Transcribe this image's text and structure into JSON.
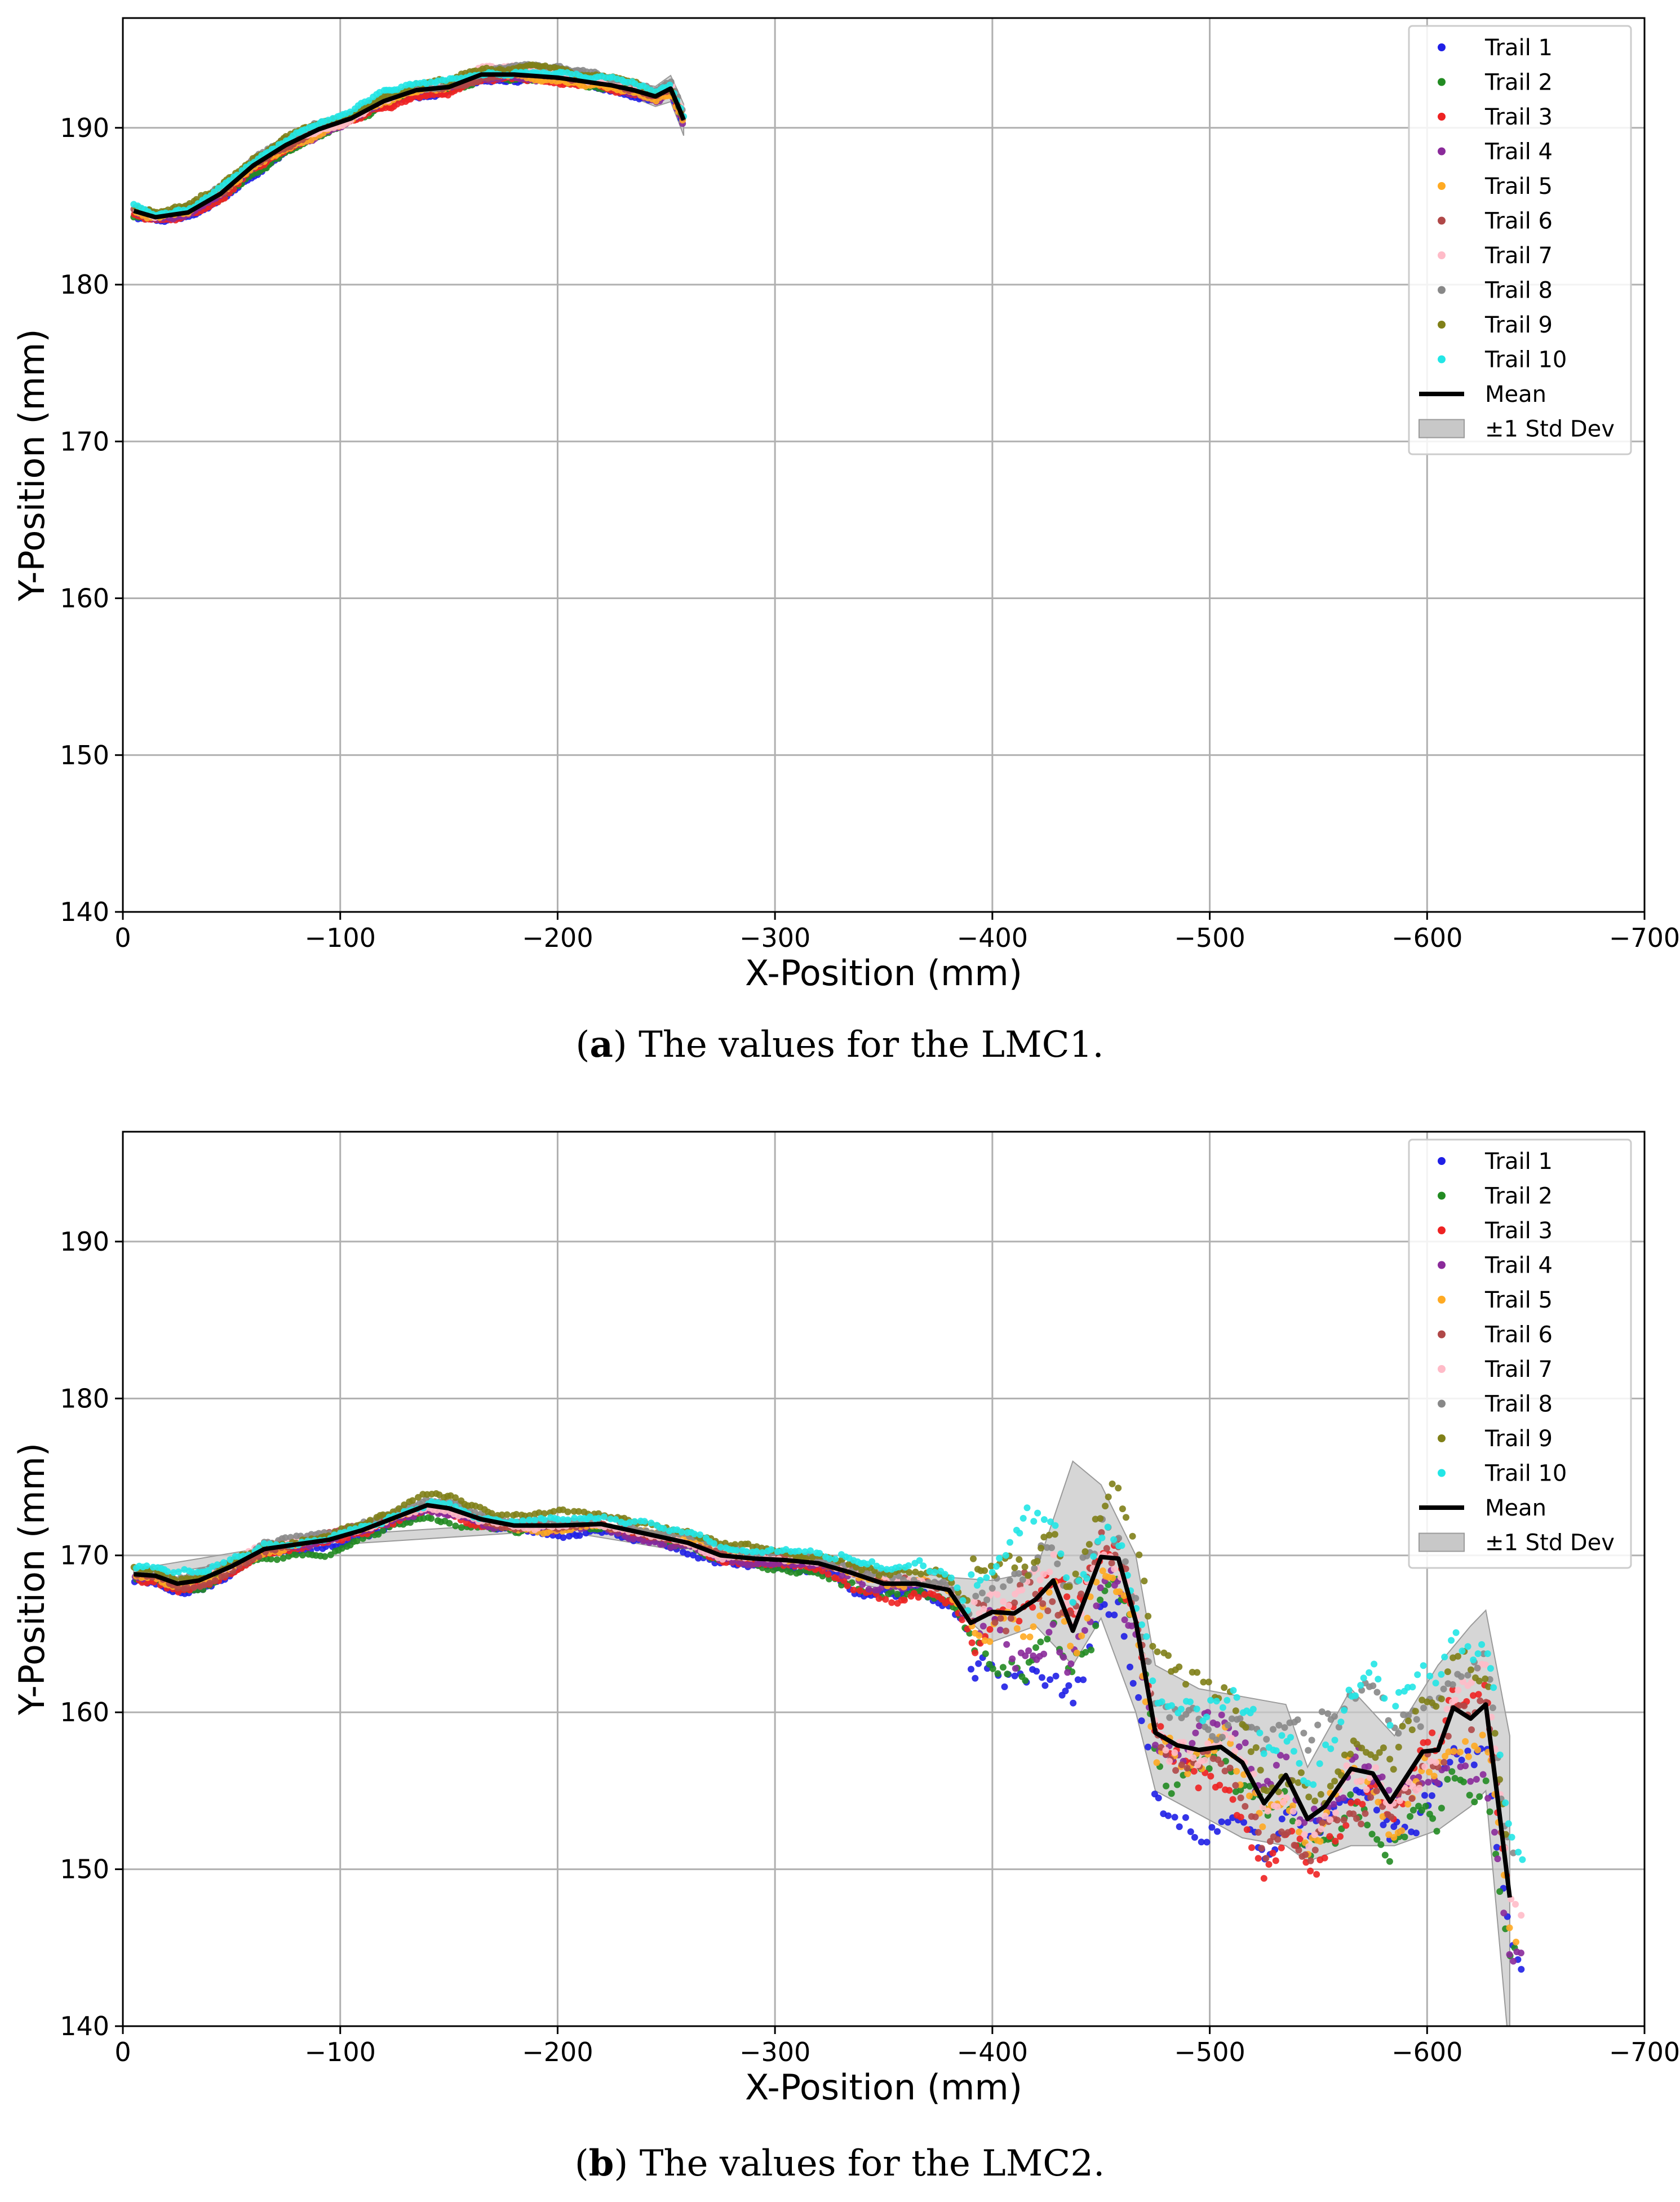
{
  "chart_data": [
    {
      "type": "scatter",
      "panel": "a",
      "caption_label": "a",
      "caption_text": ") The values for the LMC1.",
      "caption_open": "(",
      "xlabel": "X-Position (mm)",
      "ylabel": "Y-Position (mm)",
      "xlim": [
        0,
        -700
      ],
      "ylim": [
        140,
        197
      ],
      "xticks": [
        0,
        -100,
        -200,
        -300,
        -400,
        -500,
        -600,
        -700
      ],
      "xtick_labels": [
        "0",
        "−100",
        "−200",
        "−300",
        "−400",
        "−500",
        "−600",
        "−700"
      ],
      "yticks": [
        140,
        150,
        160,
        170,
        180,
        190
      ],
      "ytick_labels": [
        "140",
        "150",
        "160",
        "170",
        "180",
        "190"
      ],
      "grid": true,
      "legend_position": "top-right",
      "trail_colors": [
        "#1f1fe6",
        "#228b22",
        "#ee2222",
        "#8a2a9a",
        "#ffaa22",
        "#b04848",
        "#ffbbc8",
        "#888888",
        "#808018",
        "#22e6e6"
      ],
      "series": [
        {
          "name": "Trail 1",
          "color": "#1f1fe6"
        },
        {
          "name": "Trail 2",
          "color": "#228b22"
        },
        {
          "name": "Trail 3",
          "color": "#ee2222"
        },
        {
          "name": "Trail 4",
          "color": "#8a2a9a"
        },
        {
          "name": "Trail 5",
          "color": "#ffaa22"
        },
        {
          "name": "Trail 6",
          "color": "#b04848"
        },
        {
          "name": "Trail 7",
          "color": "#ffbbc8"
        },
        {
          "name": "Trail 8",
          "color": "#888888"
        },
        {
          "name": "Trail 9",
          "color": "#808018"
        },
        {
          "name": "Trail 10",
          "color": "#22e6e6"
        }
      ],
      "mean_label": "Mean",
      "std_label": "±1 Std Dev",
      "mean": [
        [
          -5,
          184.7
        ],
        [
          -15,
          184.3
        ],
        [
          -30,
          184.6
        ],
        [
          -45,
          185.8
        ],
        [
          -60,
          187.6
        ],
        [
          -75,
          188.9
        ],
        [
          -90,
          189.9
        ],
        [
          -105,
          190.6
        ],
        [
          -120,
          191.7
        ],
        [
          -135,
          192.4
        ],
        [
          -150,
          192.6
        ],
        [
          -165,
          193.4
        ],
        [
          -180,
          193.4
        ],
        [
          -200,
          193.2
        ],
        [
          -215,
          192.9
        ],
        [
          -225,
          192.7
        ],
        [
          -235,
          192.4
        ],
        [
          -245,
          192.0
        ],
        [
          -252,
          192.5
        ],
        [
          -256,
          191.2
        ],
        [
          -258,
          190.5
        ]
      ],
      "std_half_width": [
        [
          -5,
          0.3
        ],
        [
          -100,
          0.3
        ],
        [
          -200,
          0.3
        ],
        [
          -240,
          0.5
        ],
        [
          -258,
          1.0
        ]
      ]
    },
    {
      "type": "scatter",
      "panel": "b",
      "caption_label": "b",
      "caption_text": ") The values for the LMC2.",
      "caption_open": "(",
      "xlabel": "X-Position (mm)",
      "ylabel": "Y-Position (mm)",
      "xlim": [
        0,
        -700
      ],
      "ylim": [
        140,
        197
      ],
      "xticks": [
        0,
        -100,
        -200,
        -300,
        -400,
        -500,
        -600,
        -700
      ],
      "xtick_labels": [
        "0",
        "−100",
        "−200",
        "−300",
        "−400",
        "−500",
        "−600",
        "−700"
      ],
      "yticks": [
        140,
        150,
        160,
        170,
        180,
        190
      ],
      "ytick_labels": [
        "140",
        "150",
        "160",
        "170",
        "180",
        "190"
      ],
      "grid": true,
      "legend_position": "top-right",
      "series": [
        {
          "name": "Trail 1",
          "color": "#1f1fe6"
        },
        {
          "name": "Trail 2",
          "color": "#228b22"
        },
        {
          "name": "Trail 3",
          "color": "#ee2222"
        },
        {
          "name": "Trail 4",
          "color": "#8a2a9a"
        },
        {
          "name": "Trail 5",
          "color": "#ffaa22"
        },
        {
          "name": "Trail 6",
          "color": "#b04848"
        },
        {
          "name": "Trail 7",
          "color": "#ffbbc8"
        },
        {
          "name": "Trail 8",
          "color": "#888888"
        },
        {
          "name": "Trail 9",
          "color": "#808018"
        },
        {
          "name": "Trail 10",
          "color": "#22e6e6"
        }
      ],
      "mean_label": "Mean",
      "std_label": "±1 Std Dev",
      "mean": [
        [
          -5,
          168.8
        ],
        [
          -15,
          168.7
        ],
        [
          -25,
          168.2
        ],
        [
          -35,
          168.4
        ],
        [
          -50,
          169.3
        ],
        [
          -65,
          170.4
        ],
        [
          -80,
          170.7
        ],
        [
          -95,
          171.0
        ],
        [
          -110,
          171.6
        ],
        [
          -125,
          172.4
        ],
        [
          -140,
          173.2
        ],
        [
          -150,
          173.0
        ],
        [
          -165,
          172.3
        ],
        [
          -180,
          171.9
        ],
        [
          -200,
          171.9
        ],
        [
          -220,
          172.0
        ],
        [
          -240,
          171.4
        ],
        [
          -260,
          170.8
        ],
        [
          -275,
          170.0
        ],
        [
          -290,
          169.8
        ],
        [
          -305,
          169.7
        ],
        [
          -320,
          169.5
        ],
        [
          -335,
          168.9
        ],
        [
          -350,
          168.2
        ],
        [
          -365,
          168.2
        ],
        [
          -380,
          167.8
        ],
        [
          -390,
          165.7
        ],
        [
          -400,
          166.4
        ],
        [
          -410,
          166.3
        ],
        [
          -420,
          167.2
        ],
        [
          -428,
          168.4
        ],
        [
          -437,
          165.2
        ],
        [
          -450,
          169.9
        ],
        [
          -458,
          169.8
        ],
        [
          -466,
          165.8
        ],
        [
          -475,
          158.7
        ],
        [
          -485,
          157.9
        ],
        [
          -495,
          157.6
        ],
        [
          -505,
          157.8
        ],
        [
          -515,
          156.8
        ],
        [
          -525,
          154.2
        ],
        [
          -535,
          156.0
        ],
        [
          -545,
          153.2
        ],
        [
          -553,
          154.0
        ],
        [
          -565,
          156.4
        ],
        [
          -575,
          156.1
        ],
        [
          -583,
          154.3
        ],
        [
          -598,
          157.5
        ],
        [
          -605,
          157.6
        ],
        [
          -612,
          160.3
        ],
        [
          -620,
          159.6
        ],
        [
          -627,
          160.5
        ],
        [
          -632,
          155.0
        ],
        [
          -638,
          148.2
        ]
      ],
      "std_band": [
        [
          -5,
          168.5,
          169.1
        ],
        [
          -100,
          170.7,
          171.3
        ],
        [
          -200,
          171.6,
          172.2
        ],
        [
          -300,
          169.3,
          170.1
        ],
        [
          -380,
          167.0,
          168.6
        ],
        [
          -400,
          164.5,
          168.4
        ],
        [
          -420,
          165.5,
          169.0
        ],
        [
          -437,
          163.0,
          176.0
        ],
        [
          -450,
          166.0,
          174.5
        ],
        [
          -466,
          160.0,
          170.0
        ],
        [
          -475,
          155.0,
          163.0
        ],
        [
          -495,
          153.5,
          161.5
        ],
        [
          -515,
          152.0,
          161.0
        ],
        [
          -535,
          151.5,
          160.5
        ],
        [
          -545,
          150.5,
          156.5
        ],
        [
          -565,
          151.5,
          161.5
        ],
        [
          -585,
          151.5,
          158.5
        ],
        [
          -605,
          152.5,
          163.0
        ],
        [
          -620,
          154.0,
          165.5
        ],
        [
          -627,
          155.0,
          166.5
        ],
        [
          -638,
          138.0,
          158.5
        ]
      ]
    }
  ]
}
